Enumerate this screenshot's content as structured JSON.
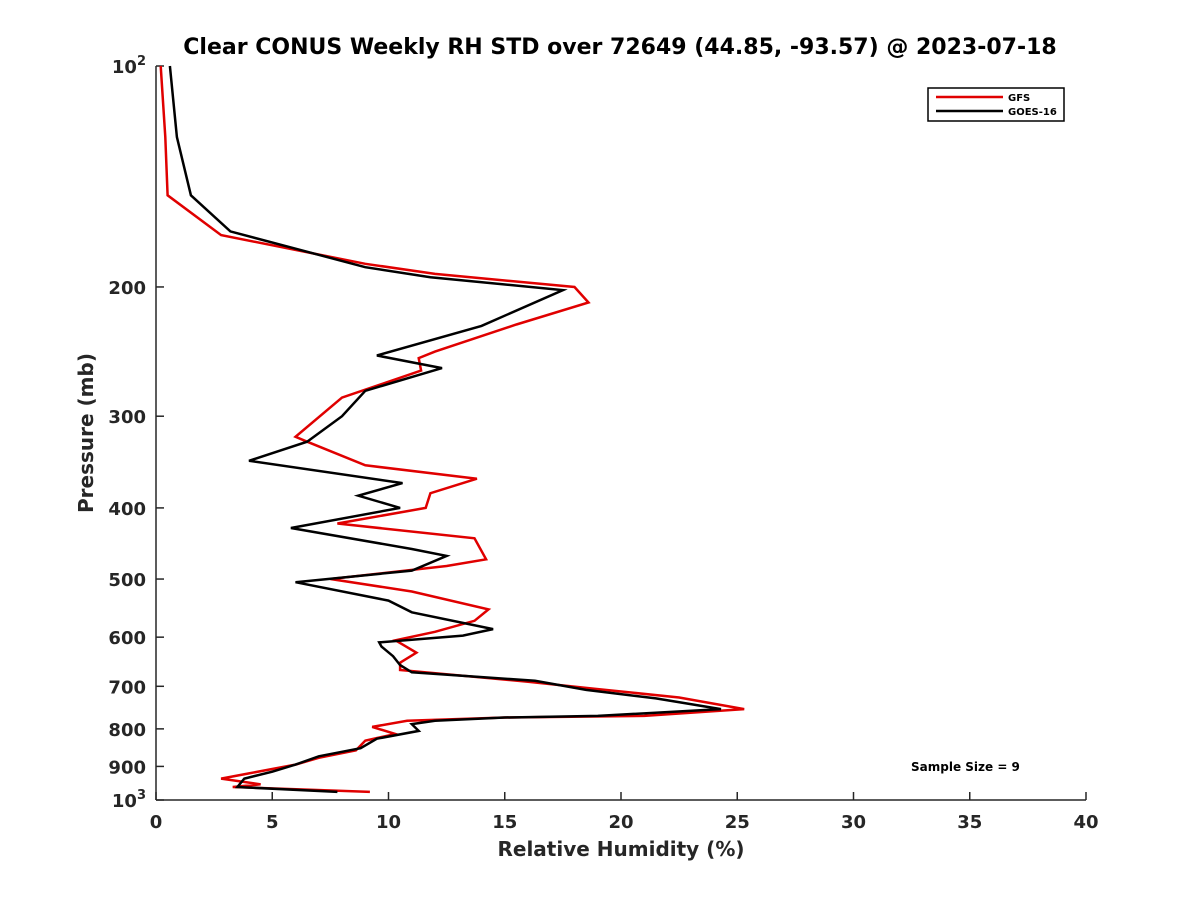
{
  "chart_data": {
    "type": "line",
    "title": "Clear CONUS Weekly RH STD over 72649 (44.85, -93.57) @ 2023-07-18",
    "xlabel": "Relative Humidity (%)",
    "ylabel": "Pressure (mb)",
    "xlim": [
      0,
      40
    ],
    "ylim": [
      100,
      1000
    ],
    "y_scale": "log",
    "y_reversed": true,
    "grid": false,
    "legend_position": "top-right",
    "x_ticks": [
      "0",
      "5",
      "10",
      "15",
      "20",
      "25",
      "30",
      "35",
      "40"
    ],
    "y_ticks": [
      {
        "value": 100,
        "base": "10",
        "exp": "2"
      },
      {
        "value": 200,
        "label": "200"
      },
      {
        "value": 300,
        "label": "300"
      },
      {
        "value": 400,
        "label": "400"
      },
      {
        "value": 500,
        "label": "500"
      },
      {
        "value": 600,
        "label": "600"
      },
      {
        "value": 700,
        "label": "700"
      },
      {
        "value": 800,
        "label": "800"
      },
      {
        "value": 900,
        "label": "900"
      },
      {
        "value": 1000,
        "base": "10",
        "exp": "3"
      }
    ],
    "annotation": "Sample Size = 9",
    "series": [
      {
        "name": "GFS",
        "color": "#e00000",
        "points": [
          [
            0.2,
            100
          ],
          [
            0.4,
            125
          ],
          [
            0.5,
            150
          ],
          [
            2.8,
            170
          ],
          [
            9.0,
            186
          ],
          [
            12.0,
            192
          ],
          [
            18.0,
            200
          ],
          [
            18.6,
            210
          ],
          [
            15.5,
            225
          ],
          [
            12.0,
            245
          ],
          [
            11.3,
            250
          ],
          [
            11.4,
            260
          ],
          [
            8.0,
            283
          ],
          [
            6.0,
            320
          ],
          [
            6.5,
            325
          ],
          [
            9.0,
            350
          ],
          [
            13.8,
            365
          ],
          [
            11.8,
            382
          ],
          [
            11.6,
            400
          ],
          [
            7.8,
            420
          ],
          [
            13.7,
            440
          ],
          [
            14.2,
            470
          ],
          [
            12.5,
            480
          ],
          [
            7.5,
            500
          ],
          [
            11.0,
            520
          ],
          [
            14.3,
            550
          ],
          [
            13.7,
            570
          ],
          [
            12.0,
            590
          ],
          [
            10.3,
            606
          ],
          [
            11.2,
            630
          ],
          [
            10.5,
            650
          ],
          [
            10.5,
            665
          ],
          [
            16.0,
            690
          ],
          [
            18.8,
            705
          ],
          [
            22.5,
            725
          ],
          [
            25.3,
            752
          ],
          [
            21.0,
            768
          ],
          [
            15.0,
            772
          ],
          [
            10.8,
            780
          ],
          [
            9.3,
            795
          ],
          [
            10.3,
            813
          ],
          [
            9.0,
            830
          ],
          [
            8.6,
            856
          ],
          [
            7.0,
            876
          ],
          [
            6.0,
            895
          ],
          [
            4.0,
            920
          ],
          [
            2.8,
            935
          ],
          [
            4.5,
            952
          ],
          [
            3.3,
            960
          ],
          [
            9.2,
            975
          ]
        ]
      },
      {
        "name": "GOES-16",
        "color": "#000000",
        "points": [
          [
            0.6,
            100
          ],
          [
            0.9,
            125
          ],
          [
            1.5,
            150
          ],
          [
            3.2,
            168
          ],
          [
            9.0,
            188
          ],
          [
            11.8,
            194
          ],
          [
            17.5,
            202
          ],
          [
            14.0,
            226
          ],
          [
            9.5,
            248
          ],
          [
            12.3,
            258
          ],
          [
            9.0,
            277
          ],
          [
            8.0,
            300
          ],
          [
            6.5,
            325
          ],
          [
            4.0,
            345
          ],
          [
            10.6,
            370
          ],
          [
            8.7,
            385
          ],
          [
            10.5,
            400
          ],
          [
            5.8,
            426
          ],
          [
            11.0,
            455
          ],
          [
            12.5,
            465
          ],
          [
            11.0,
            487
          ],
          [
            6.0,
            505
          ],
          [
            10.0,
            535
          ],
          [
            11.0,
            555
          ],
          [
            14.5,
            585
          ],
          [
            13.2,
            597
          ],
          [
            9.6,
            610
          ],
          [
            9.7,
            618
          ],
          [
            10.2,
            637
          ],
          [
            10.5,
            655
          ],
          [
            11.0,
            670
          ],
          [
            16.3,
            688
          ],
          [
            18.5,
            708
          ],
          [
            21.5,
            727
          ],
          [
            24.3,
            752
          ],
          [
            19.0,
            768
          ],
          [
            15.0,
            772
          ],
          [
            12.0,
            780
          ],
          [
            11.0,
            788
          ],
          [
            11.3,
            805
          ],
          [
            9.5,
            825
          ],
          [
            8.8,
            850
          ],
          [
            7.0,
            872
          ],
          [
            6.0,
            895
          ],
          [
            5.0,
            915
          ],
          [
            3.8,
            935
          ],
          [
            3.5,
            960
          ],
          [
            7.8,
            975
          ]
        ]
      }
    ]
  }
}
